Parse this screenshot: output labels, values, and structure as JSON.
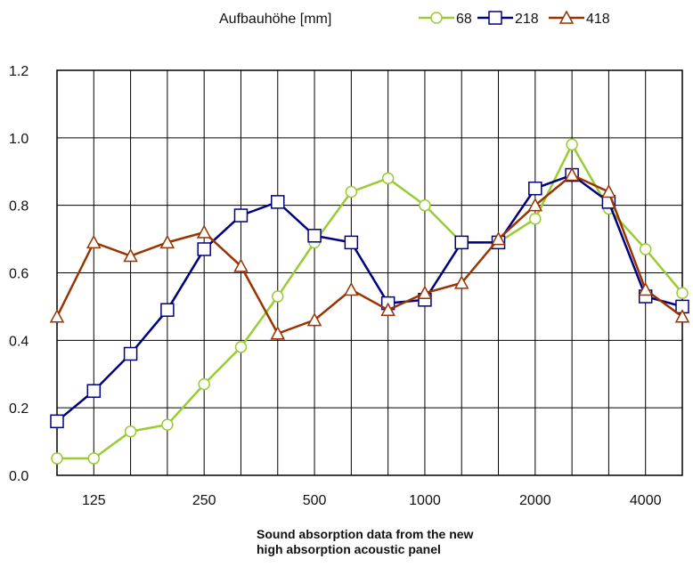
{
  "chart_data": {
    "type": "line",
    "legend_title": "Aufbauhöhe [mm]",
    "legend_position": "top-right",
    "grid": true,
    "ylim": [
      0.0,
      1.2
    ],
    "y_ticks": [
      "0.0",
      "0.2",
      "0.4",
      "0.6",
      "0.8",
      "1.0",
      "1.2"
    ],
    "x_categories": [
      "100",
      "125",
      "160",
      "200",
      "250",
      "315",
      "400",
      "500",
      "630",
      "800",
      "1000",
      "1250",
      "1600",
      "2000",
      "2500",
      "3150",
      "4000",
      "5000"
    ],
    "x_tick_labels": [
      "125",
      "250",
      "500",
      "1000",
      "2000",
      "4000"
    ],
    "series": [
      {
        "name": "68",
        "color": "#99cc33",
        "marker": "circle",
        "values": [
          0.05,
          0.05,
          0.13,
          0.15,
          0.27,
          0.38,
          0.53,
          0.69,
          0.84,
          0.88,
          0.8,
          0.69,
          0.69,
          0.76,
          0.98,
          0.79,
          0.67,
          0.54
        ]
      },
      {
        "name": "218",
        "color": "#000080",
        "marker": "square",
        "values": [
          0.16,
          0.25,
          0.36,
          0.49,
          0.67,
          0.77,
          0.81,
          0.71,
          0.69,
          0.51,
          0.52,
          0.69,
          0.69,
          0.85,
          0.89,
          0.81,
          0.53,
          0.5
        ]
      },
      {
        "name": "418",
        "color": "#993300",
        "marker": "triangle",
        "values": [
          0.47,
          0.69,
          0.65,
          0.69,
          0.72,
          0.62,
          0.42,
          0.46,
          0.55,
          0.49,
          0.54,
          0.57,
          0.7,
          0.8,
          0.89,
          0.84,
          0.55,
          0.47
        ]
      }
    ]
  },
  "caption": {
    "line1": "Sound absorption data from the new",
    "line2": "high absorption acoustic panel"
  }
}
